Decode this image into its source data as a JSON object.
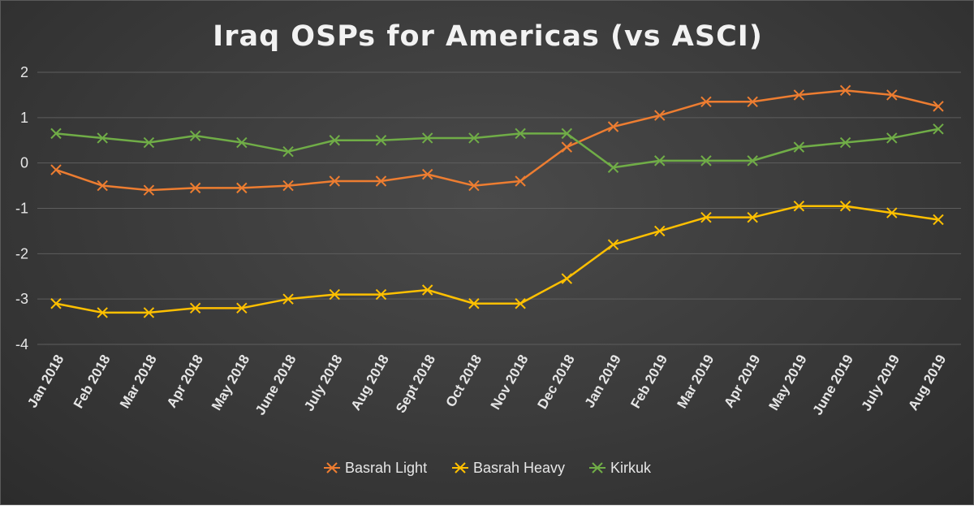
{
  "chart_data": {
    "type": "line",
    "title": "Iraq OSPs for Americas (vs ASCI)",
    "xlabel": "",
    "ylabel": "",
    "ylim": [
      -4,
      2
    ],
    "yticks": [
      "2",
      "1",
      "0",
      "-1",
      "-2",
      "-3",
      "-4"
    ],
    "grid": true,
    "legend_position": "bottom",
    "categories": [
      "Jan 2018",
      "Feb 2018",
      "Mar 2018",
      "Apr 2018",
      "May 2018",
      "June 2018",
      "July 2018",
      "Aug 2018",
      "Sept 2018",
      "Oct 2018",
      "Nov 2018",
      "Dec 2018",
      "Jan 2019",
      "Feb 2019",
      "Mar 2019",
      "Apr 2019",
      "May 2019",
      "June 2019",
      "July 2019",
      "Aug 2019"
    ],
    "series": [
      {
        "name": "Basrah Light",
        "color": "#ed7d31",
        "values": [
          -0.15,
          -0.5,
          -0.6,
          -0.55,
          -0.55,
          -0.5,
          -0.4,
          -0.4,
          -0.25,
          -0.5,
          -0.4,
          0.35,
          0.8,
          1.05,
          1.35,
          1.35,
          1.5,
          1.6,
          1.5,
          1.25
        ]
      },
      {
        "name": "Basrah Heavy",
        "color": "#ffc000",
        "values": [
          -3.1,
          -3.3,
          -3.3,
          -3.2,
          -3.2,
          -3.0,
          -2.9,
          -2.9,
          -2.8,
          -3.1,
          -3.1,
          -2.55,
          -1.8,
          -1.5,
          -1.2,
          -1.2,
          -0.95,
          -0.95,
          -1.1,
          -1.25
        ]
      },
      {
        "name": "Kirkuk",
        "color": "#70ad47",
        "values": [
          0.65,
          0.55,
          0.45,
          0.6,
          0.45,
          0.25,
          0.5,
          0.5,
          0.55,
          0.55,
          0.65,
          0.65,
          -0.1,
          0.05,
          0.05,
          0.05,
          0.35,
          0.45,
          0.55,
          0.75
        ]
      }
    ]
  }
}
